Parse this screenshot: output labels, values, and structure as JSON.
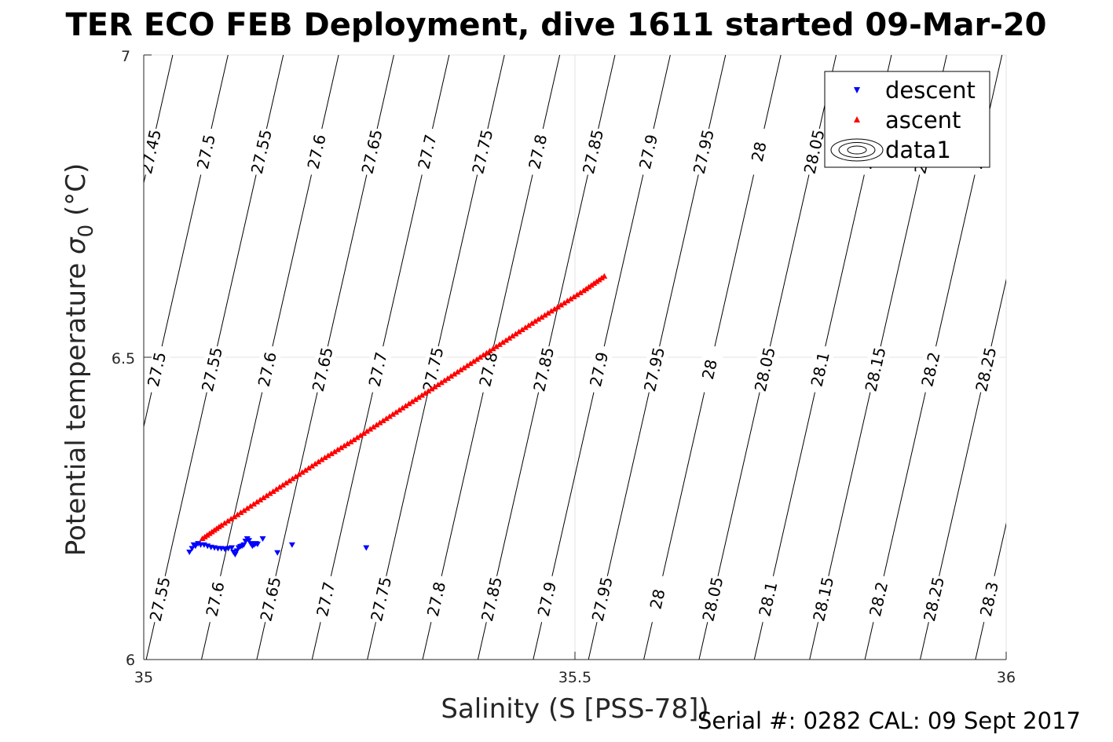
{
  "chart_data": {
    "type": "scatter",
    "title": "TER ECO FEB Deployment, dive 1611 started 09-Mar-20",
    "xlabel": "Salinity (S [PSS-78])",
    "ylabel_main": "Potential temperature ",
    "ylabel_sigma": "σ",
    "ylabel_sub": "0",
    "ylabel_unit": " (°C)",
    "xlim": [
      35,
      36
    ],
    "ylim": [
      6,
      7
    ],
    "x_ticks": [
      "35",
      "35.5",
      "36"
    ],
    "y_ticks": [
      "6",
      "6.5",
      "7"
    ],
    "grid": true,
    "legend_position": "top-right",
    "legend": [
      "descent",
      "ascent",
      "data1"
    ],
    "colors": {
      "descent": "#0000ff",
      "ascent": "#ff0000",
      "contour": "#000000"
    },
    "contour_levels": {
      "top": [
        "27.45",
        "27.5",
        "27.55",
        "27.6",
        "27.65",
        "27.7",
        "27.75",
        "27.8",
        "27.85",
        "27.9",
        "27.95",
        "28",
        "28.05",
        "28.1",
        "28.15",
        "28.2"
      ],
      "middle": [
        "27.5",
        "27.55",
        "27.6",
        "27.65",
        "27.7",
        "27.75",
        "27.8",
        "27.85",
        "27.9",
        "27.95",
        "28",
        "28.05",
        "28.1",
        "28.15",
        "28.2",
        "28.25"
      ],
      "bottom": [
        "27.55",
        "27.6",
        "27.65",
        "27.7",
        "27.75",
        "27.8",
        "27.85",
        "27.9",
        "27.95",
        "28",
        "28.05",
        "28.1",
        "28.15",
        "28.2",
        "28.25",
        "28.3"
      ]
    },
    "series": [
      {
        "name": "descent",
        "marker": "triangle-down",
        "points": [
          [
            35.053,
            6.178
          ],
          [
            35.056,
            6.184
          ],
          [
            35.058,
            6.19
          ],
          [
            35.06,
            6.188
          ],
          [
            35.063,
            6.192
          ],
          [
            35.066,
            6.19
          ],
          [
            35.07,
            6.19
          ],
          [
            35.074,
            6.188
          ],
          [
            35.078,
            6.186
          ],
          [
            35.082,
            6.185
          ],
          [
            35.086,
            6.184
          ],
          [
            35.09,
            6.184
          ],
          [
            35.094,
            6.183
          ],
          [
            35.098,
            6.184
          ],
          [
            35.102,
            6.185
          ],
          [
            35.104,
            6.178
          ],
          [
            35.106,
            6.174
          ],
          [
            35.108,
            6.18
          ],
          [
            35.11,
            6.185
          ],
          [
            35.112,
            6.187
          ],
          [
            35.114,
            6.188
          ],
          [
            35.116,
            6.19
          ],
          [
            35.118,
            6.196
          ],
          [
            35.12,
            6.2
          ],
          [
            35.122,
            6.197
          ],
          [
            35.124,
            6.192
          ],
          [
            35.126,
            6.188
          ],
          [
            35.128,
            6.19
          ],
          [
            35.13,
            6.192
          ],
          [
            35.132,
            6.191
          ],
          [
            35.138,
            6.2
          ],
          [
            35.155,
            6.177
          ],
          [
            35.172,
            6.19
          ],
          [
            35.258,
            6.185
          ]
        ]
      },
      {
        "name": "ascent",
        "marker": "triangle-up",
        "points": [
          [
            35.068,
            6.2
          ],
          [
            35.09,
            6.222
          ],
          [
            35.12,
            6.25
          ],
          [
            35.15,
            6.278
          ],
          [
            35.18,
            6.306
          ],
          [
            35.21,
            6.334
          ],
          [
            35.24,
            6.36
          ],
          [
            35.27,
            6.388
          ],
          [
            35.3,
            6.416
          ],
          [
            35.33,
            6.444
          ],
          [
            35.36,
            6.472
          ],
          [
            35.39,
            6.5
          ],
          [
            35.42,
            6.528
          ],
          [
            35.45,
            6.556
          ],
          [
            35.48,
            6.583
          ],
          [
            35.51,
            6.61
          ],
          [
            35.534,
            6.634
          ]
        ]
      }
    ],
    "footer": "Serial #: 0282  CAL: 09 Sept 2017"
  }
}
